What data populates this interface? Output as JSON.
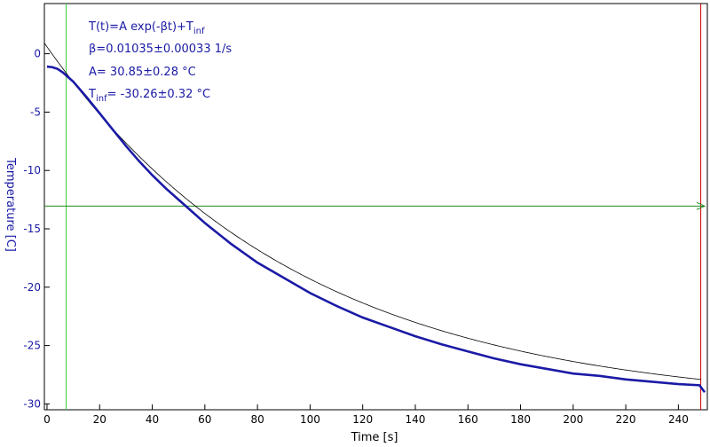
{
  "chart_data": {
    "type": "line",
    "xlabel": "Time [s]",
    "ylabel": "Temperature [C]",
    "xlim": [
      -1,
      251
    ],
    "ylim": [
      -30.5,
      4.3
    ],
    "x_ticks": [
      0,
      20,
      40,
      60,
      80,
      100,
      120,
      140,
      160,
      180,
      200,
      220,
      240
    ],
    "y_ticks": [
      0,
      -5,
      -10,
      -15,
      -20,
      -25,
      -30
    ],
    "grid": false,
    "fit": {
      "model_label": "T(t)=A exp(-βt)+T",
      "model_label_sub": "inf",
      "beta_label": "β=0.01035±0.00033 1/s",
      "a_label": "A= 30.85±0.28 °C",
      "tinf_label_main": "T",
      "tinf_label_sub": "inf",
      "tinf_label_rest": "= -30.26±0.32 °C",
      "A": 30.85,
      "beta": 0.01035,
      "T_inf": -30.26,
      "color": "#000000"
    },
    "series": [
      {
        "color": "#1a1aa6",
        "x": [
          0,
          2,
          4,
          6,
          8,
          10,
          15,
          20,
          25,
          30,
          35,
          40,
          45,
          50,
          55,
          60,
          70,
          80,
          90,
          100,
          110,
          120,
          130,
          140,
          150,
          160,
          170,
          180,
          190,
          200,
          210,
          220,
          230,
          240,
          248,
          250
        ],
        "y": [
          -1.1,
          -1.15,
          -1.3,
          -1.6,
          -2.0,
          -2.4,
          -3.7,
          -5.1,
          -6.5,
          -7.9,
          -9.2,
          -10.4,
          -11.5,
          -12.5,
          -13.5,
          -14.5,
          -16.3,
          -17.9,
          -19.2,
          -20.5,
          -21.6,
          -22.6,
          -23.4,
          -24.2,
          -24.9,
          -25.5,
          -26.1,
          -26.6,
          -27.0,
          -27.4,
          -27.6,
          -27.9,
          -28.1,
          -28.3,
          -28.4,
          -29.0
        ]
      }
    ],
    "cursors": {
      "vertical_left": {
        "x": 7.3,
        "color": "#33cc33"
      },
      "vertical_right": {
        "x": 248.5,
        "color": "#cc0000"
      },
      "horizontal": {
        "y": -13.05,
        "color": "#228822"
      }
    }
  }
}
